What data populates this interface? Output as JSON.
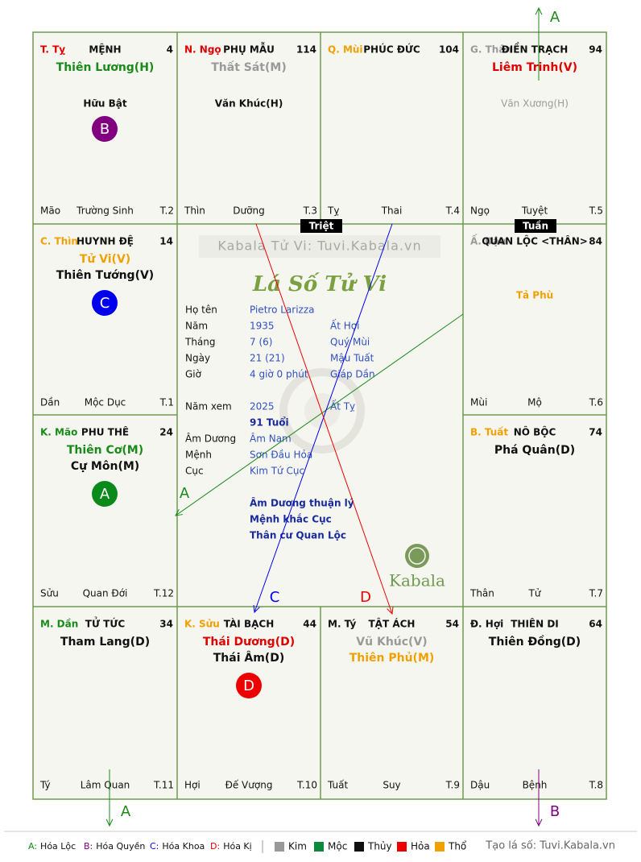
{
  "header": {
    "brand": "Kabala Tử Vi: Tuvi.Kabala.vn",
    "title": "Lá Số Tử Vi",
    "logo": "Kabala"
  },
  "palaces": [
    {
      "branch": {
        "text": "T. Tỵ",
        "color": "#e00000"
      },
      "name": "MỆNH",
      "number": "4",
      "main_stars": [
        {
          "text": "Thiên Lương(H)",
          "color": "#1a8a1a"
        }
      ],
      "minor_stars": [
        {
          "text": "Hữu Bật",
          "color": "#111111"
        }
      ],
      "badge": {
        "text": "B",
        "color": "#800080"
      },
      "footer": [
        "Mão",
        "Trường Sinh",
        "T.2"
      ]
    },
    {
      "branch": {
        "text": "N. Ngọ",
        "color": "#e00000"
      },
      "name": "PHỤ MẪU",
      "number": "114",
      "main_stars": [
        {
          "text": "Thất Sát(M)",
          "color": "#9a9a9a"
        }
      ],
      "minor_stars": [
        {
          "text": "Văn Khúc(H)",
          "color": "#111111"
        }
      ],
      "footer": [
        "Thìn",
        "Dưỡng",
        "T.3"
      ]
    },
    {
      "branch": {
        "text": "Q. Mùi",
        "color": "#f0a000"
      },
      "name": "PHÚC ĐỨC",
      "number": "104",
      "main_stars": [],
      "minor_stars": [],
      "footer": [
        "Tỵ",
        "Thai",
        "T.4"
      ]
    },
    {
      "branch": {
        "text": "G. Thân",
        "color": "#9a9a9a"
      },
      "name": "ĐIỀN TRẠCH",
      "number": "94",
      "main_stars": [
        {
          "text": "Liêm Trinh(V)",
          "color": "#e00000"
        }
      ],
      "minor_stars": [
        {
          "text": "Văn Xương(H)",
          "color": "#9a9a9a"
        }
      ],
      "footer": [
        "Ngọ",
        "Tuyệt",
        "T.5"
      ]
    },
    {
      "branch": {
        "text": "Ấ. Dậu",
        "color": "#9a9a9a"
      },
      "name": "QUAN LỘC <THÂN>",
      "number": "84",
      "main_stars": [],
      "minor_stars": [
        {
          "text": "Tả Phù",
          "color": "#f0a000"
        }
      ],
      "footer": [
        "Mùi",
        "Mộ",
        "T.6"
      ]
    },
    {
      "branch": {
        "text": "B. Tuất",
        "color": "#f0a000"
      },
      "name": "NÔ BỘC",
      "number": "74",
      "main_stars": [
        {
          "text": "Phá Quân(D)",
          "color": "#111111"
        }
      ],
      "minor_stars": [],
      "footer": [
        "Thân",
        "Tử",
        "T.7"
      ]
    },
    {
      "branch": {
        "text": "Đ. Hợi",
        "color": "#111111"
      },
      "name": "THIÊN DI",
      "number": "64",
      "main_stars": [
        {
          "text": "Thiên Đồng(D)",
          "color": "#111111"
        }
      ],
      "minor_stars": [],
      "footer": [
        "Dậu",
        "Bệnh",
        "T.8"
      ]
    },
    {
      "branch": {
        "text": "M. Tý",
        "color": "#111111"
      },
      "name": "TẬT ÁCH",
      "number": "54",
      "main_stars": [
        {
          "text": "Vũ Khúc(V)",
          "color": "#9a9a9a"
        },
        {
          "text": "Thiên Phủ(M)",
          "color": "#f0a000"
        }
      ],
      "minor_stars": [],
      "footer": [
        "Tuất",
        "Suy",
        "T.9"
      ]
    },
    {
      "branch": {
        "text": "K. Sửu",
        "color": "#f0a000"
      },
      "name": "TÀI BẠCH",
      "number": "44",
      "main_stars": [
        {
          "text": "Thái Dương(D)",
          "color": "#e00000"
        },
        {
          "text": "Thái Âm(D)",
          "color": "#111111"
        }
      ],
      "minor_stars": [],
      "badge": {
        "text": "D",
        "color": "#ee0000"
      },
      "footer": [
        "Hợi",
        "Đế Vượng",
        "T.10"
      ]
    },
    {
      "branch": {
        "text": "M. Dần",
        "color": "#1a8a1a"
      },
      "name": "TỬ TỨC",
      "number": "34",
      "main_stars": [
        {
          "text": "Tham Lang(D)",
          "color": "#111111"
        }
      ],
      "minor_stars": [],
      "footer": [
        "Tý",
        "Lâm Quan",
        "T.11"
      ]
    },
    {
      "branch": {
        "text": "K. Mão",
        "color": "#1a8a1a"
      },
      "name": "PHU THÊ",
      "number": "24",
      "main_stars": [
        {
          "text": "Thiên Cơ(M)",
          "color": "#1a8a1a"
        },
        {
          "text": "Cự Môn(M)",
          "color": "#111111"
        }
      ],
      "minor_stars": [],
      "badge": {
        "text": "A",
        "color": "#0a8a1a"
      },
      "footer": [
        "Sửu",
        "Quan Đới",
        "T.12"
      ]
    },
    {
      "branch": {
        "text": "C. Thìn",
        "color": "#f0a000"
      },
      "name": "HUYNH ĐỆ",
      "number": "14",
      "main_stars": [
        {
          "text": "Tử Vi(V)",
          "color": "#f0a000"
        },
        {
          "text": "Thiên Tướng(V)",
          "color": "#111111"
        }
      ],
      "minor_stars": [],
      "badge": {
        "text": "C",
        "color": "#0000ee"
      },
      "footer": [
        "Dần",
        "Mộc Dục",
        "T.1"
      ]
    }
  ],
  "markers": {
    "triet": "Triệt",
    "tuan": "Tuần"
  },
  "info": {
    "rows": [
      {
        "label": "Họ tên",
        "value": "Pietro Larizza"
      },
      {
        "label": "Năm",
        "value": "1935",
        "extra": "Ất Hợi"
      },
      {
        "label": "Tháng",
        "value": "7  (6)",
        "extra": "Quý Mùi"
      },
      {
        "label": "Ngày",
        "value": "21  (21)",
        "extra": "Mậu Tuất"
      },
      {
        "label": "Giờ",
        "value": "4 giờ 0 phút",
        "extra": "Giáp Dần"
      },
      {
        "label": "Năm xem",
        "value": "2025",
        "extra": "Ất Tỵ"
      },
      {
        "value": "91 Tuổi"
      },
      {
        "label": "Âm Dương",
        "value": "Âm Nam"
      },
      {
        "label": "Mệnh",
        "value": "Sơn Đầu Hỏa"
      },
      {
        "label": "Cục",
        "value": "Kim Tứ Cục"
      }
    ],
    "notes": [
      "Âm Dương thuận lý",
      "Mệnh khắc Cục",
      "Thân cư Quan Lộc"
    ]
  },
  "arrows": [
    {
      "label": "A",
      "color": "#1a8a1a"
    },
    {
      "label": "A",
      "color": "#1a8a1a"
    },
    {
      "label": "C",
      "color": "#0000ee"
    },
    {
      "label": "D",
      "color": "#ee0000"
    },
    {
      "label": "A",
      "color": "#1a8a1a"
    },
    {
      "label": "B",
      "color": "#800080"
    }
  ],
  "legend": {
    "transforms": [
      {
        "key": "A:",
        "desc": "Hóa Lộc",
        "color": "#1a8a1a"
      },
      {
        "key": "B:",
        "desc": "Hóa Quyền",
        "color": "#800080"
      },
      {
        "key": "C:",
        "desc": "Hóa Khoa",
        "color": "#0000ee"
      },
      {
        "key": "D:",
        "desc": "Hóa Kị",
        "color": "#ee0000"
      }
    ],
    "elements": [
      {
        "name": "Kim",
        "color": "#999999"
      },
      {
        "name": "Mộc",
        "color": "#0a8a3a"
      },
      {
        "name": "Thủy",
        "color": "#111111"
      },
      {
        "name": "Hỏa",
        "color": "#ee0000"
      },
      {
        "name": "Thổ",
        "color": "#f0a000"
      }
    ],
    "credit": "Tạo lá số: Tuvi.Kabala.vn"
  }
}
